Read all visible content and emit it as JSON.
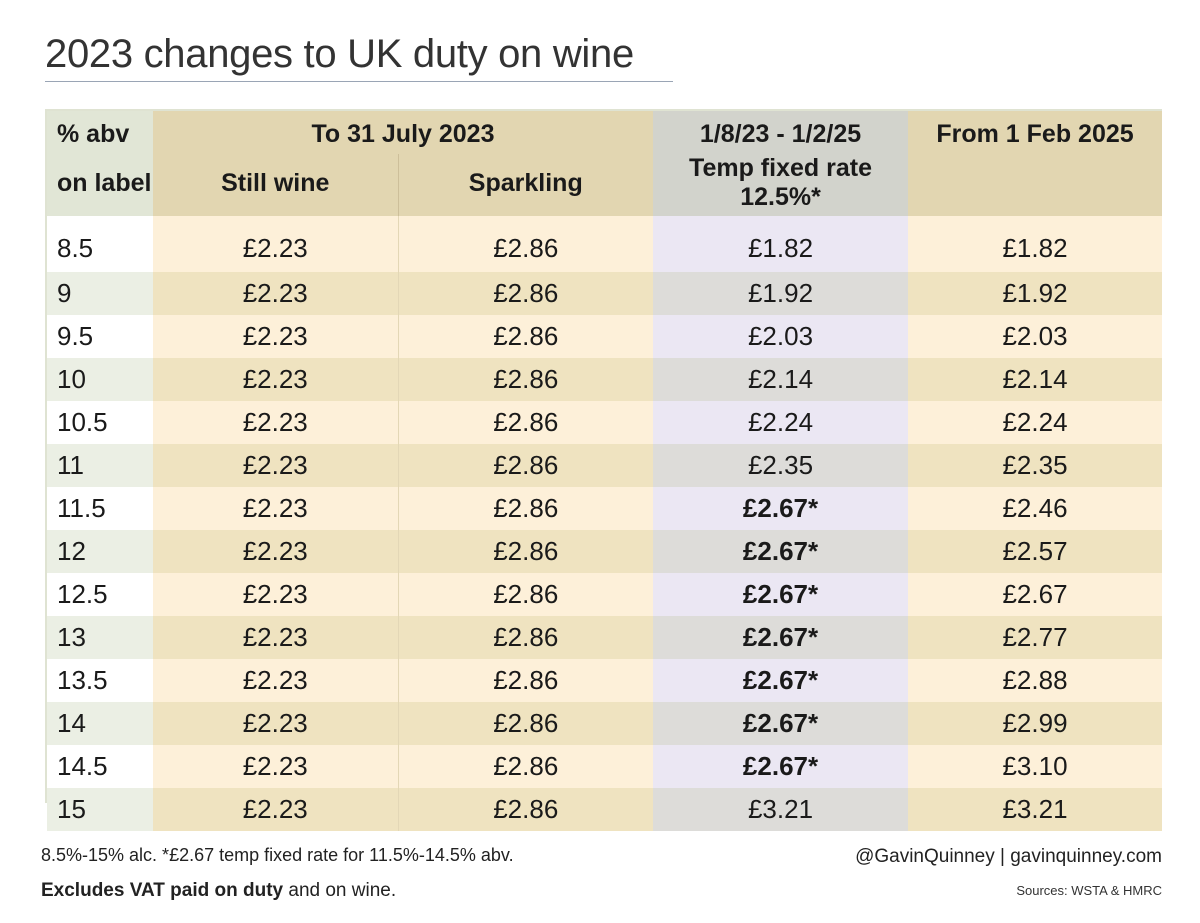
{
  "title": "2023 changes to UK duty on wine",
  "chart_data": {
    "type": "table",
    "title": "2023 changes to UK duty on wine",
    "header": {
      "abv_line1": "% abv",
      "abv_line2": "on label",
      "group_old": "To 31 July 2023",
      "still": "Still wine",
      "sparkling": "Sparkling",
      "temp_line1": "1/8/23 - 1/2/25",
      "temp_line2": "Temp fixed rate 12.5%*",
      "new_line1": "From 1 Feb 2025"
    },
    "columns": [
      "% abv on label",
      "Still wine",
      "Sparkling",
      "1/8/23 - 1/2/25 Temp fixed rate 12.5%*",
      "From 1 Feb 2025"
    ],
    "rows": [
      {
        "abv": "8.5",
        "still": "£2.23",
        "sparkling": "£2.86",
        "temp": "£1.82",
        "temp_bold": false,
        "new": "£1.82"
      },
      {
        "abv": "9",
        "still": "£2.23",
        "sparkling": "£2.86",
        "temp": "£1.92",
        "temp_bold": false,
        "new": "£1.92"
      },
      {
        "abv": "9.5",
        "still": "£2.23",
        "sparkling": "£2.86",
        "temp": "£2.03",
        "temp_bold": false,
        "new": "£2.03"
      },
      {
        "abv": "10",
        "still": "£2.23",
        "sparkling": "£2.86",
        "temp": "£2.14",
        "temp_bold": false,
        "new": "£2.14"
      },
      {
        "abv": "10.5",
        "still": "£2.23",
        "sparkling": "£2.86",
        "temp": "£2.24",
        "temp_bold": false,
        "new": "£2.24"
      },
      {
        "abv": "11",
        "still": "£2.23",
        "sparkling": "£2.86",
        "temp": "£2.35",
        "temp_bold": false,
        "new": "£2.35"
      },
      {
        "abv": "11.5",
        "still": "£2.23",
        "sparkling": "£2.86",
        "temp": "£2.67*",
        "temp_bold": true,
        "new": "£2.46"
      },
      {
        "abv": "12",
        "still": "£2.23",
        "sparkling": "£2.86",
        "temp": "£2.67*",
        "temp_bold": true,
        "new": "£2.57"
      },
      {
        "abv": "12.5",
        "still": "£2.23",
        "sparkling": "£2.86",
        "temp": "£2.67*",
        "temp_bold": true,
        "new": "£2.67"
      },
      {
        "abv": "13",
        "still": "£2.23",
        "sparkling": "£2.86",
        "temp": "£2.67*",
        "temp_bold": true,
        "new": "£2.77"
      },
      {
        "abv": "13.5",
        "still": "£2.23",
        "sparkling": "£2.86",
        "temp": "£2.67*",
        "temp_bold": true,
        "new": "£2.88"
      },
      {
        "abv": "14",
        "still": "£2.23",
        "sparkling": "£2.86",
        "temp": "£2.67*",
        "temp_bold": true,
        "new": "£2.99"
      },
      {
        "abv": "14.5",
        "still": "£2.23",
        "sparkling": "£2.86",
        "temp": "£2.67*",
        "temp_bold": true,
        "new": "£3.10"
      },
      {
        "abv": "15",
        "still": "£2.23",
        "sparkling": "£2.86",
        "temp": "£3.21",
        "temp_bold": false,
        "new": "£3.21"
      }
    ]
  },
  "footer": {
    "note1": "8.5%-15% alc. *£2.67 temp fixed rate for 11.5%-14.5% abv.",
    "note2_bold": "Excludes VAT paid on duty",
    "note2_rest": " and on wine.",
    "credit": "@GavinQuinney  |  gavinquinney.com",
    "sources": "Sources: WSTA & HMRC"
  },
  "colors": {
    "header_old": "#e2d6b1",
    "header_temp": "#d2d3cc",
    "header_abv": "#e1e6d6",
    "row_light": "#fdf0d9",
    "row_dark": "#efe3c0",
    "temp_light": "#ebe7f3",
    "temp_dark": "#dddcd9"
  }
}
